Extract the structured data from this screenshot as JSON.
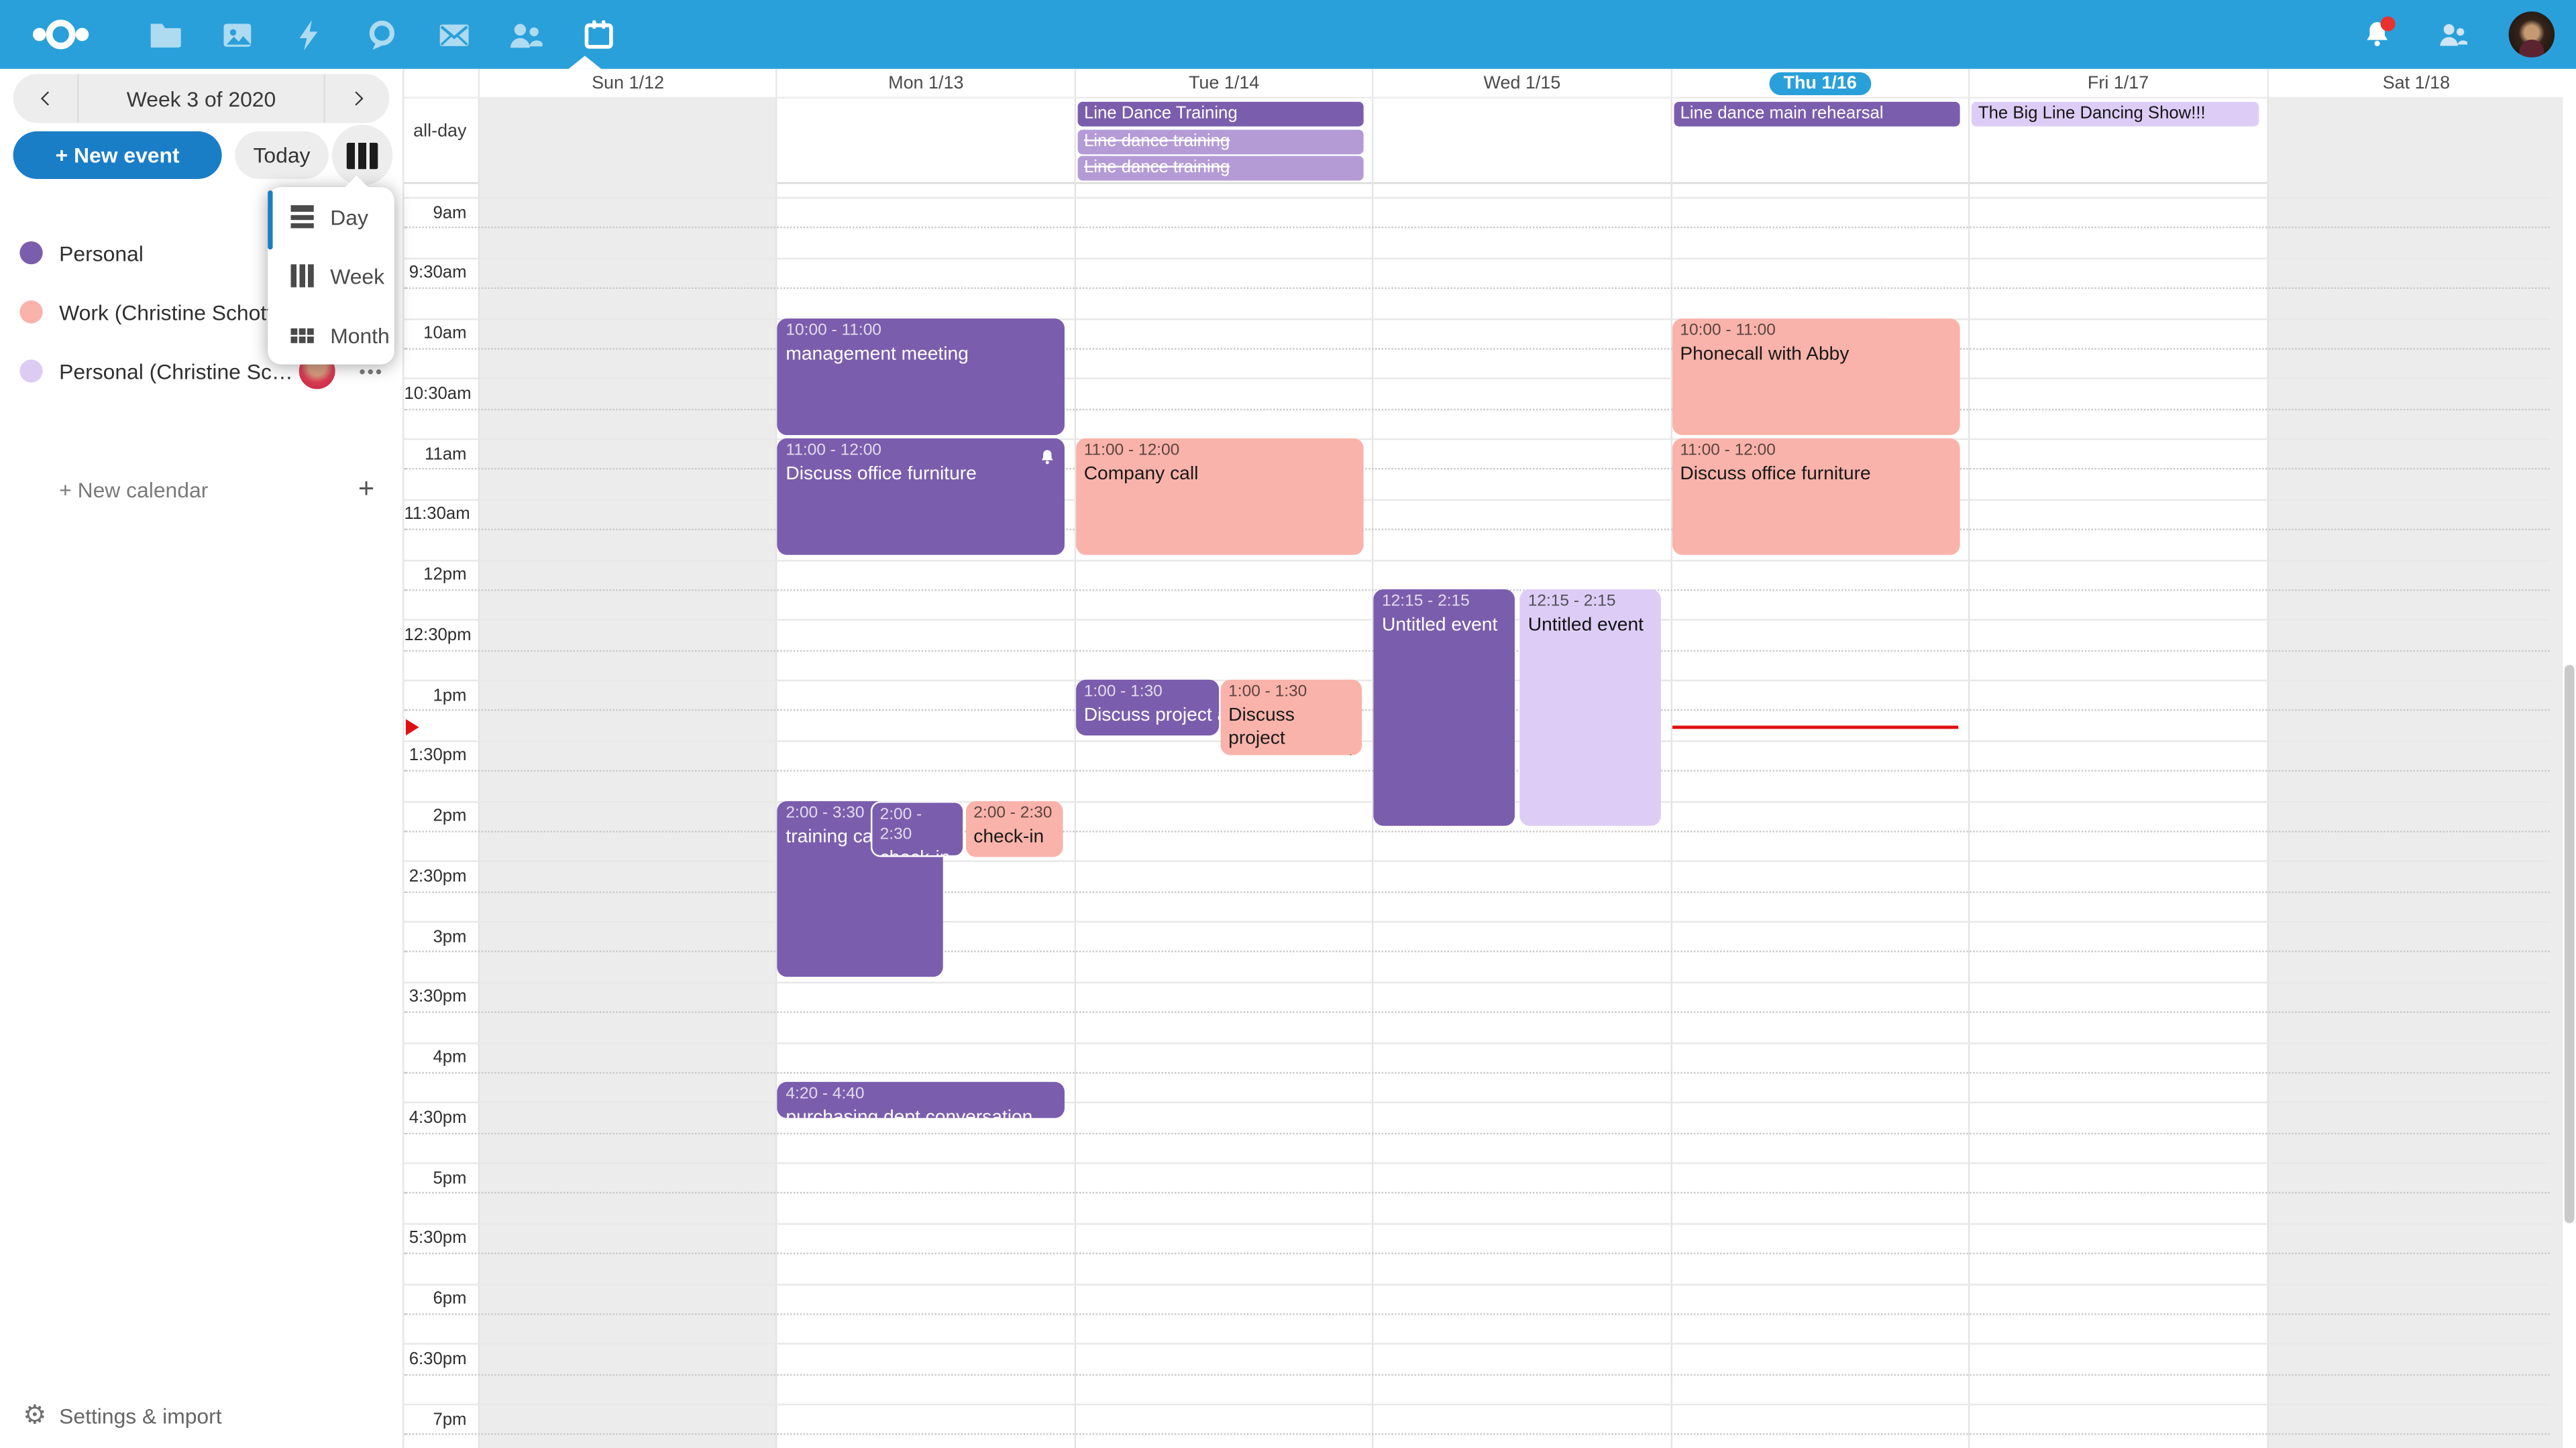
{
  "topbar": {
    "apps": [
      "files",
      "photos",
      "activity",
      "talk",
      "mail",
      "contacts",
      "calendar"
    ],
    "active_app": "calendar",
    "has_notification_badge": true
  },
  "sidebar": {
    "week_label": "Week 3 of 2020",
    "new_event_label": "+ New event",
    "today_label": "Today",
    "view_menu": {
      "items": [
        {
          "label": "Day",
          "icon": "day"
        },
        {
          "label": "Week",
          "icon": "week"
        },
        {
          "label": "Month",
          "icon": "month"
        }
      ]
    },
    "calendars": [
      {
        "label": "Personal",
        "color": "#7b5dad",
        "has_avatar": false,
        "has_menu": false
      },
      {
        "label": "Work (Christine Schott)",
        "color": "#f9b3aa",
        "has_avatar": false,
        "has_menu": false
      },
      {
        "label": "Personal (Christine Schott)",
        "color": "#dcccf4",
        "has_avatar": true,
        "has_menu": true
      }
    ],
    "new_calendar_label": "+ New calendar",
    "settings_label": "Settings & import"
  },
  "calendar": {
    "allday_label": "all-day",
    "day_headers": [
      "Sun 1/12",
      "Mon 1/13",
      "Tue 1/14",
      "Wed 1/15",
      "Thu 1/16",
      "Fri 1/17",
      "Sat 1/18"
    ],
    "today_index": 4,
    "weekend_cols": [
      0,
      6
    ],
    "time_labels": [
      "9am",
      "9:30am",
      "10am",
      "10:30am",
      "11am",
      "11:30am",
      "12pm",
      "12:30pm",
      "1pm",
      "1:30pm",
      "2pm",
      "2:30pm",
      "3pm",
      "3:30pm",
      "4pm",
      "4:30pm",
      "5pm",
      "5:30pm",
      "6pm",
      "6:30pm",
      "7pm"
    ],
    "allday_events": [
      {
        "col": 2,
        "title": "Line Dance Training",
        "palette": "purple",
        "cancelled": false
      },
      {
        "col": 2,
        "title": "Line dance training",
        "palette": "purple_light",
        "cancelled": true
      },
      {
        "col": 2,
        "title": "Line dance training",
        "palette": "purple_light",
        "cancelled": true
      },
      {
        "col": 4,
        "title": "Line dance main rehearsal",
        "palette": "purple",
        "cancelled": false
      },
      {
        "col": 5,
        "title": "The Big Line Dancing Show!!!",
        "palette": "lavender",
        "cancelled": false
      }
    ],
    "events": [
      {
        "col": 1,
        "start_min": 60,
        "end_min": 120,
        "time": "10:00 - 11:00",
        "title": "management meeting",
        "palette": "purple",
        "lane": [
          0.5,
          96.5
        ]
      },
      {
        "col": 1,
        "start_min": 120,
        "end_min": 180,
        "time": "11:00 - 12:00",
        "title": "Discuss office furniture",
        "palette": "purple",
        "lane": [
          0.5,
          96.5
        ],
        "bell": true
      },
      {
        "col": 1,
        "start_min": 300,
        "end_min": 390,
        "time": "2:00 - 3:30",
        "title": "training call",
        "palette": "purple",
        "lane": [
          0.5,
          55.5
        ]
      },
      {
        "col": 1,
        "start_min": 300,
        "end_min": 330,
        "time": "2:00 - 2:30",
        "title": "check-in",
        "palette": "purple",
        "lane": [
          31.5,
          31.5
        ],
        "outlined": true
      },
      {
        "col": 1,
        "start_min": 300,
        "end_min": 330,
        "time": "2:00 - 2:30",
        "title": "check-in",
        "palette": "salmon",
        "lane": [
          63.5,
          33
        ]
      },
      {
        "col": 1,
        "start_min": 440,
        "end_min": 460,
        "time": "4:20 - 4:40",
        "title": "purchasing dept conversation",
        "palette": "purple",
        "lane": [
          0.5,
          96.5
        ]
      },
      {
        "col": 2,
        "start_min": 120,
        "end_min": 180,
        "time": "11:00 - 12:00",
        "title": "Company call",
        "palette": "salmon",
        "lane": [
          0.5,
          96.5
        ]
      },
      {
        "col": 2,
        "start_min": 240,
        "end_min": 270,
        "time": "1:00 - 1:30",
        "title": "Discuss project announcement",
        "palette": "purple",
        "lane": [
          0.5,
          48
        ],
        "clip": true
      },
      {
        "col": 2,
        "start_min": 240,
        "end_min": 270,
        "time": "1:00 - 1:30",
        "title": "Discuss project announcement",
        "palette": "salmon",
        "lane": [
          49,
          47.5
        ],
        "min_h": 46
      },
      {
        "col": 3,
        "start_min": 195,
        "end_min": 315,
        "time": "12:15 - 2:15",
        "title": "Untitled event",
        "palette": "purple",
        "lane": [
          0.5,
          47.5
        ]
      },
      {
        "col": 3,
        "start_min": 195,
        "end_min": 315,
        "time": "12:15 - 2:15",
        "title": "Untitled event",
        "palette": "lavender",
        "lane": [
          49.5,
          47.5
        ]
      },
      {
        "col": 4,
        "start_min": 60,
        "end_min": 120,
        "time": "10:00 - 11:00",
        "title": "Phonecall with Abby",
        "palette": "salmon",
        "lane": [
          0.5,
          96.5
        ]
      },
      {
        "col": 4,
        "start_min": 120,
        "end_min": 180,
        "time": "11:00 - 12:00",
        "title": "Discuss office furniture",
        "palette": "salmon",
        "lane": [
          0.5,
          96.5
        ]
      }
    ],
    "now_indicator": {
      "col": 4,
      "minutes_from_9am": 264
    }
  },
  "colors": {
    "topbar_blue": "#2aa0da",
    "primary_button_blue": "#1a7ec6",
    "event_purple": "#7b5dad",
    "event_purple_cancelled": "#b49bd6",
    "event_lavender": "#ddcdf6",
    "event_salmon": "#f9b3aa",
    "now_line_red": "#e01010",
    "weekend_grey": "#ececec",
    "notification_red": "#e9322d"
  }
}
